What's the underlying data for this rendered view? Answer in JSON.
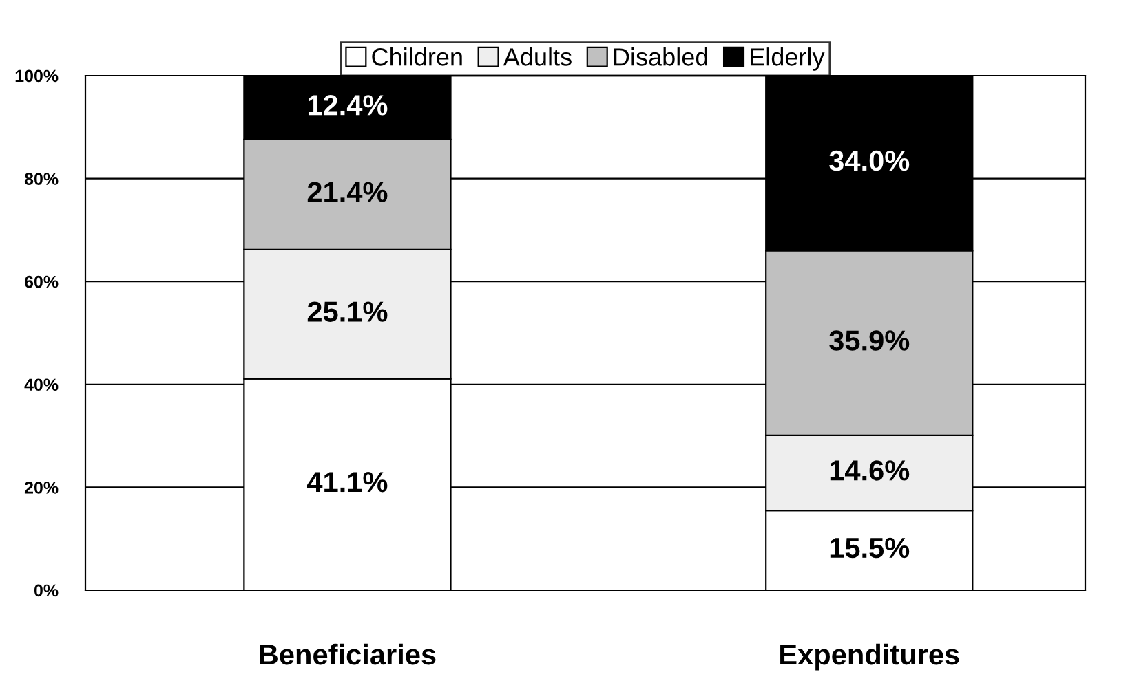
{
  "chart_data": {
    "type": "bar",
    "stacked": true,
    "categories": [
      "Beneficiaries",
      "Expenditures"
    ],
    "series": [
      {
        "name": "Children",
        "color": "#ffffff",
        "values": [
          41.1,
          15.5
        ],
        "value_labels": [
          "41.1%",
          "15.5%"
        ]
      },
      {
        "name": "Adults",
        "color": "#eeeeee",
        "values": [
          25.1,
          14.6
        ],
        "value_labels": [
          "25.1%",
          "14.6%"
        ]
      },
      {
        "name": "Disabled",
        "color": "#c0c0c0",
        "values": [
          21.4,
          35.9
        ],
        "value_labels": [
          "21.4%",
          "35.9%"
        ]
      },
      {
        "name": "Elderly",
        "color": "#000000",
        "values": [
          12.4,
          34.0
        ],
        "value_labels": [
          "12.4%",
          "34.0%"
        ]
      }
    ],
    "ylim": [
      0,
      100
    ],
    "yticks": [
      {
        "value": 0,
        "label": "0%"
      },
      {
        "value": 20,
        "label": "20%"
      },
      {
        "value": 40,
        "label": "40%"
      },
      {
        "value": 60,
        "label": "60%"
      },
      {
        "value": 80,
        "label": "80%"
      },
      {
        "value": 100,
        "label": "100%"
      }
    ],
    "grid": "y",
    "legend": "top"
  }
}
